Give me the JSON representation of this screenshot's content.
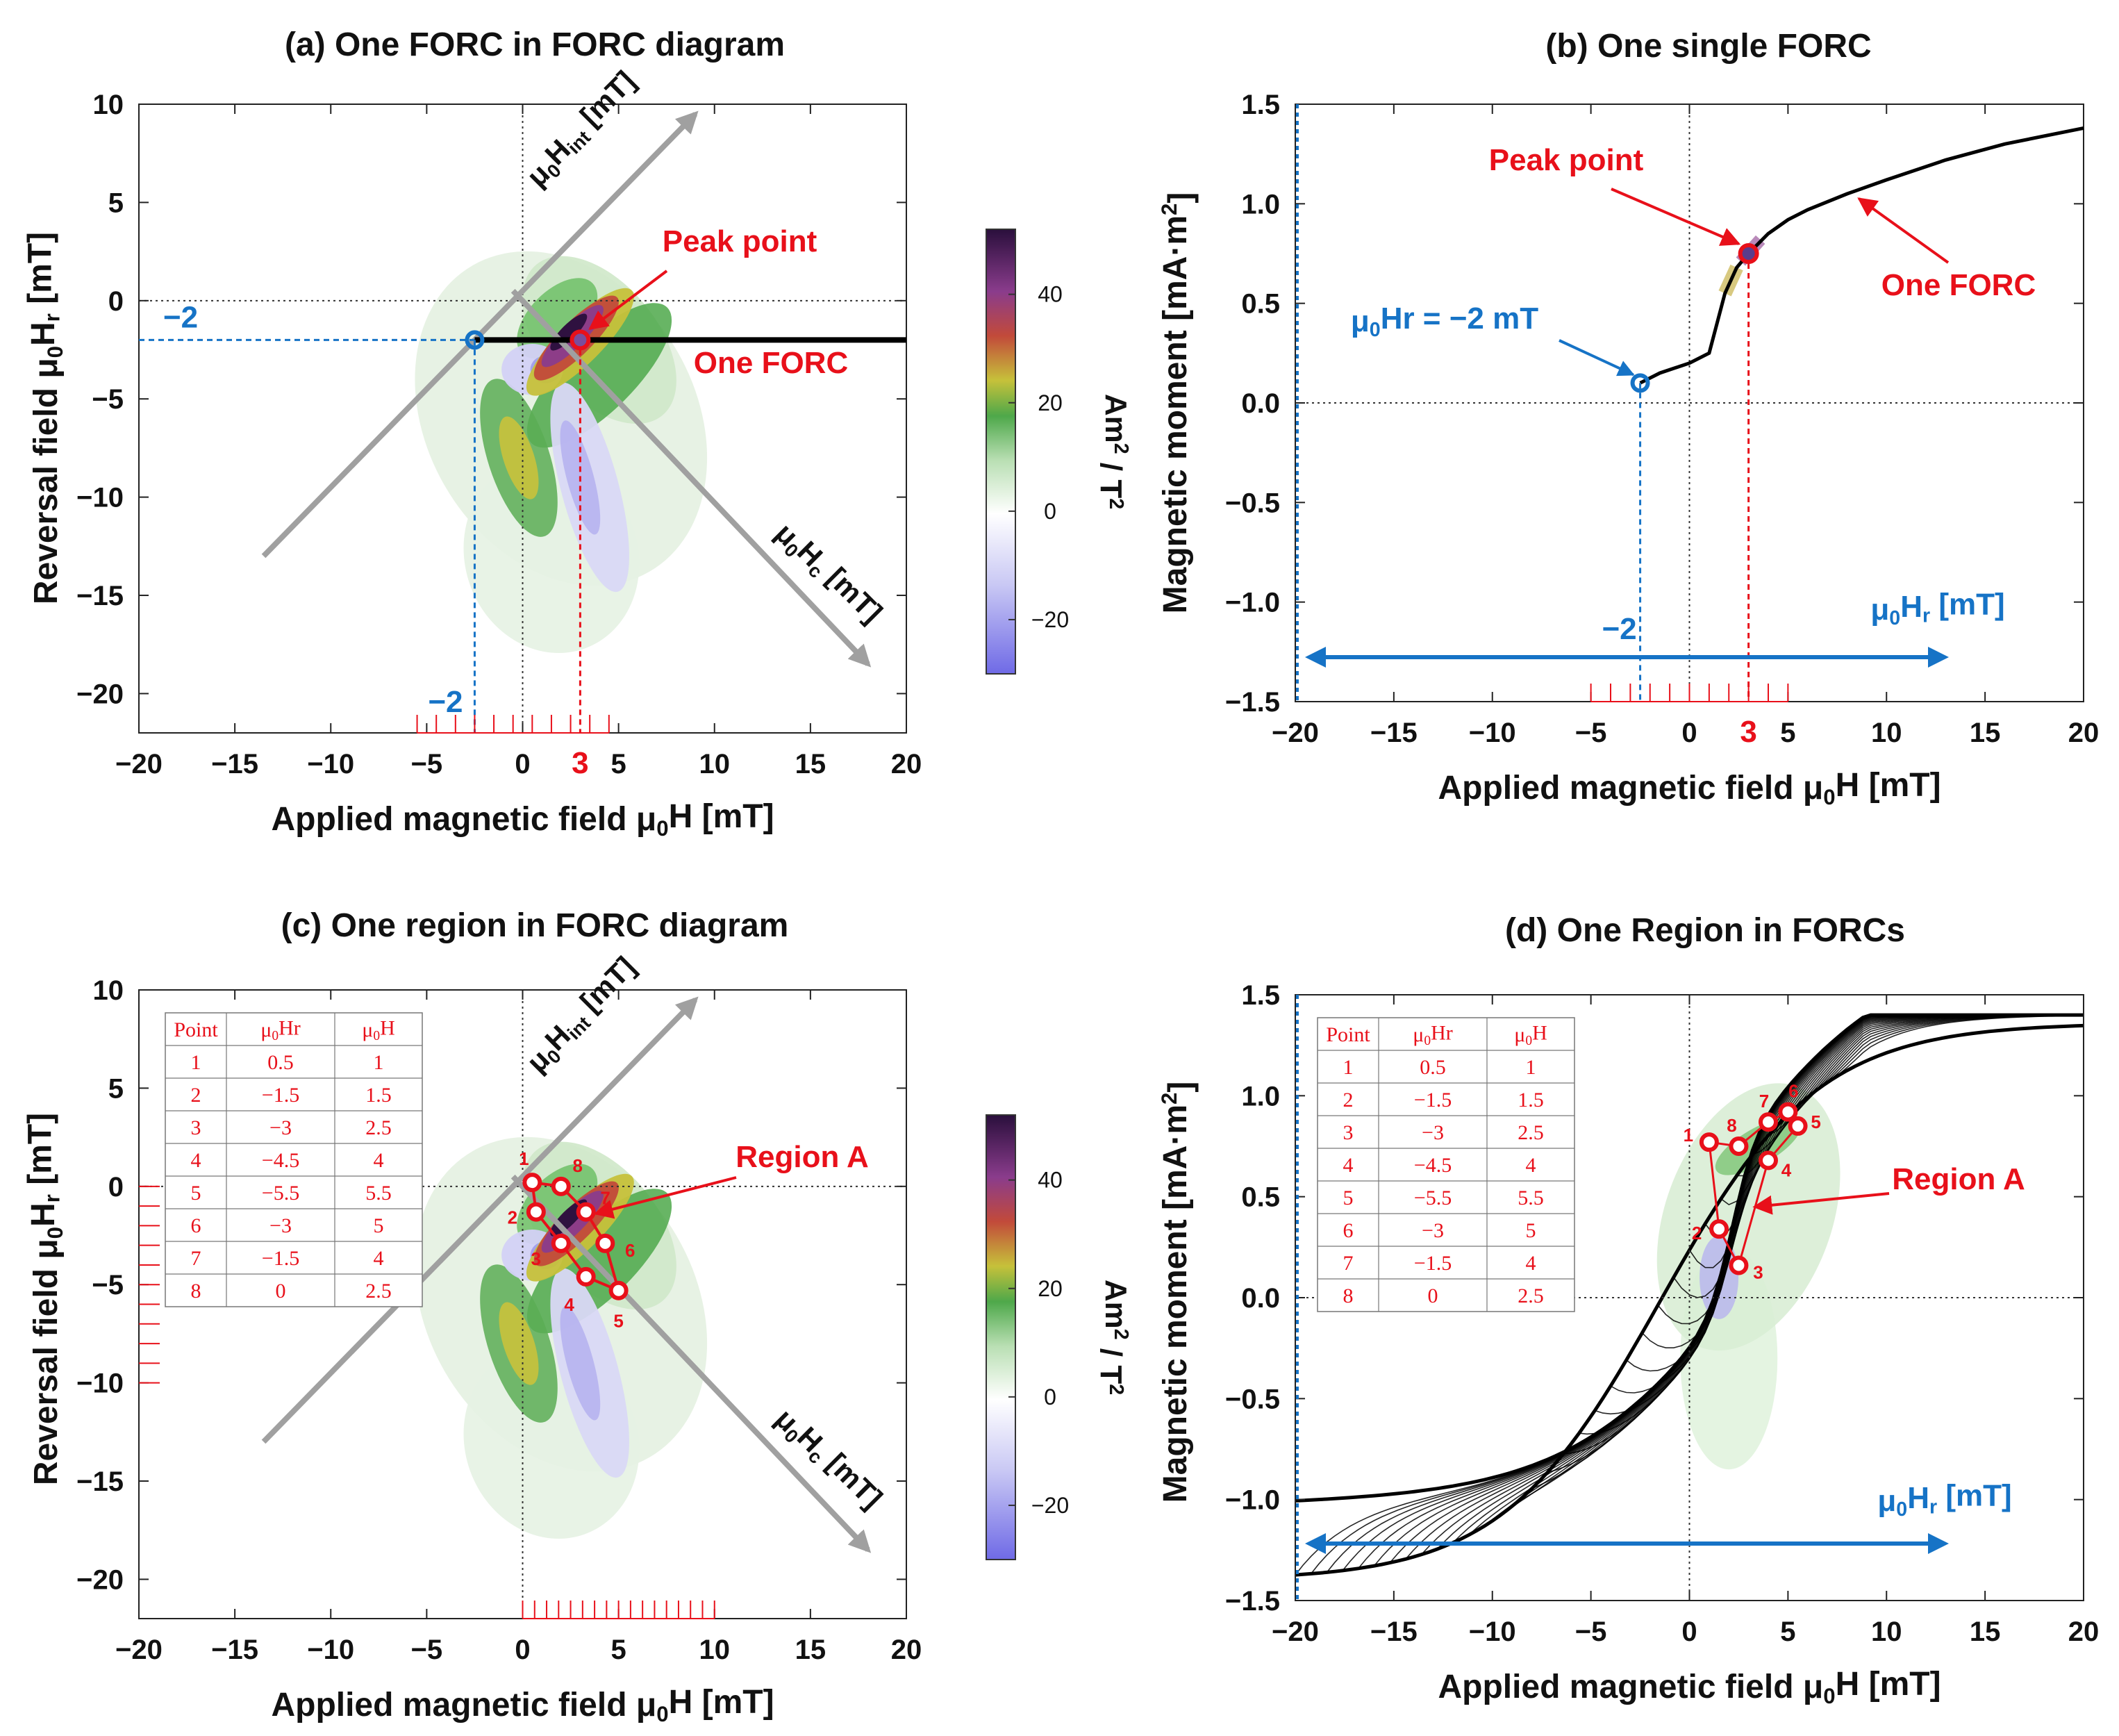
{
  "figure": {
    "common": {
      "xlabel": "Applied magnetic field μ0H [mT]",
      "ylabel_forc": "Reversal field μ0Hr [mT]",
      "ylabel_moment": "Magnetic moment [mA·m2]",
      "colorbar_label": "Am2 / T2",
      "axis_hint": "μ0Hr [mT]"
    }
  },
  "chart_data": [
    {
      "panel": "a",
      "type": "heatmap",
      "title": "(a) One FORC in FORC diagram",
      "xlabel": "Applied magnetic field μ0H [mT]",
      "ylabel": "Reversal field μ0Hr [mT]",
      "xlim": [
        -20,
        20
      ],
      "ylim": [
        -22,
        10
      ],
      "xticks": [
        -20,
        -15,
        -10,
        -5,
        0,
        5,
        10,
        15,
        20
      ],
      "yticks": [
        10,
        5,
        0,
        -5,
        -10,
        -15,
        -20
      ],
      "highlight_x_tick": "3",
      "colorbar": {
        "range": [
          -30,
          52
        ],
        "ticks": [
          40,
          20,
          0,
          -20
        ],
        "label": "Am2 / T2"
      },
      "rotated_axes": [
        "μ0Hint [mT]",
        "μ0Hc [mT]"
      ],
      "forc_line_y": -2,
      "start_point": {
        "x": -2.5,
        "y": -2,
        "label": "−2"
      },
      "peak_point": {
        "x": 3,
        "y": -2,
        "label": "Peak point"
      },
      "forc_label": "One FORC",
      "guide_labels": [
        "−2",
        "3"
      ]
    },
    {
      "panel": "b",
      "type": "line",
      "title": "(b) One single FORC",
      "xlabel": "Applied magnetic field μ0H [mT]",
      "ylabel": "Magnetic moment [mA·m2]",
      "xlim": [
        -20,
        20
      ],
      "ylim": [
        -1.5,
        1.5
      ],
      "xticks": [
        -20,
        -15,
        -10,
        -5,
        0,
        5,
        10,
        15,
        20
      ],
      "yticks": [
        1.5,
        1.0,
        0.5,
        0.0,
        -0.5,
        -1.0,
        -1.5
      ],
      "ytick_labels": [
        "1.5",
        "1.0",
        "0.5",
        "0.0",
        "−0.5",
        "−1.0",
        "−1.5"
      ],
      "highlight_x_tick": "3",
      "series": [
        {
          "name": "One FORC",
          "x": [
            -2.5,
            -1.5,
            0,
            1,
            1.8,
            2.4,
            3,
            4,
            5,
            6,
            8,
            10,
            13,
            16,
            20
          ],
          "y": [
            0.1,
            0.15,
            0.2,
            0.25,
            0.55,
            0.68,
            0.75,
            0.85,
            0.92,
            0.97,
            1.05,
            1.12,
            1.22,
            1.3,
            1.38
          ]
        }
      ],
      "start_point": {
        "x": -2.5,
        "y": 0.1,
        "label": "μ0Hr = −2 mT"
      },
      "peak_point": {
        "x": 3,
        "y": 0.75,
        "label": "Peak point"
      },
      "forc_label": "One FORC",
      "arrow_label": "μ0Hr [mT]",
      "guide_labels": [
        "−2",
        "3"
      ]
    },
    {
      "panel": "c",
      "type": "heatmap",
      "title": "(c) One region in FORC diagram",
      "xlabel": "Applied magnetic field μ0H [mT]",
      "ylabel": "Reversal field μ0Hr [mT]",
      "xlim": [
        -20,
        20
      ],
      "ylim": [
        -22,
        10
      ],
      "xticks": [
        -20,
        -15,
        -10,
        -5,
        0,
        5,
        10,
        15,
        20
      ],
      "yticks": [
        10,
        5,
        0,
        -5,
        -10,
        -15,
        -20
      ],
      "colorbar": {
        "range": [
          -30,
          52
        ],
        "ticks": [
          40,
          20,
          0,
          -20
        ],
        "label": "Am2 / T2"
      },
      "rotated_axes": [
        "μ0Hint [mT]",
        "μ0Hc [mT]"
      ],
      "region_label": "Region A",
      "table": {
        "headers": [
          "Point",
          "μ0Hr",
          "μ0H"
        ],
        "rows": [
          [
            "1",
            "0.5",
            "1"
          ],
          [
            "2",
            "−1.5",
            "1.5"
          ],
          [
            "3",
            "−3",
            "2.5"
          ],
          [
            "4",
            "−4.5",
            "4"
          ],
          [
            "5",
            "−5.5",
            "5.5"
          ],
          [
            "6",
            "−3",
            "5"
          ],
          [
            "7",
            "−1.5",
            "4"
          ],
          [
            "8",
            "0",
            "2.5"
          ]
        ]
      },
      "points": [
        {
          "label": "1",
          "x": 0.5,
          "y": 0.2
        },
        {
          "label": "2",
          "x": 0.7,
          "y": -1.3
        },
        {
          "label": "3",
          "x": 2.0,
          "y": -2.9
        },
        {
          "label": "4",
          "x": 3.3,
          "y": -4.6
        },
        {
          "label": "5",
          "x": 5.0,
          "y": -5.3
        },
        {
          "label": "6",
          "x": 4.3,
          "y": -2.9
        },
        {
          "label": "7",
          "x": 3.3,
          "y": -1.3
        },
        {
          "label": "8",
          "x": 2.0,
          "y": 0.0
        }
      ]
    },
    {
      "panel": "d",
      "type": "line",
      "title": "(d) One Region in FORCs",
      "xlabel": "Applied magnetic field μ0H [mT]",
      "ylabel": "Magnetic moment [mA·m2]",
      "xlim": [
        -20,
        20
      ],
      "ylim": [
        -1.5,
        1.5
      ],
      "xticks": [
        -20,
        -15,
        -10,
        -5,
        0,
        5,
        10,
        15,
        20
      ],
      "yticks": [
        1.5,
        1.0,
        0.5,
        0.0,
        -0.5,
        -1.0,
        -1.5
      ],
      "ytick_labels": [
        "1.5",
        "1.0",
        "0.5",
        "0.0",
        "−0.5",
        "−1.0",
        "−1.5"
      ],
      "series_description": "family of FORCs, reversal fields from −20 to 20 mT",
      "region_label": "Region A",
      "arrow_label": "μ0Hr [mT]",
      "table": {
        "headers": [
          "Point",
          "μ0Hr",
          "μ0H"
        ],
        "rows": [
          [
            "1",
            "0.5",
            "1"
          ],
          [
            "2",
            "−1.5",
            "1.5"
          ],
          [
            "3",
            "−3",
            "2.5"
          ],
          [
            "4",
            "−4.5",
            "4"
          ],
          [
            "5",
            "−5.5",
            "5.5"
          ],
          [
            "6",
            "−3",
            "5"
          ],
          [
            "7",
            "−1.5",
            "4"
          ],
          [
            "8",
            "0",
            "2.5"
          ]
        ]
      },
      "points": [
        {
          "label": "1",
          "x": 1.0,
          "y": 0.77
        },
        {
          "label": "2",
          "x": 1.5,
          "y": 0.34
        },
        {
          "label": "3",
          "x": 2.5,
          "y": 0.16
        },
        {
          "label": "4",
          "x": 4.0,
          "y": 0.68
        },
        {
          "label": "5",
          "x": 5.5,
          "y": 0.85
        },
        {
          "label": "6",
          "x": 5.0,
          "y": 0.92
        },
        {
          "label": "7",
          "x": 4.0,
          "y": 0.87
        },
        {
          "label": "8",
          "x": 2.5,
          "y": 0.75
        }
      ]
    }
  ]
}
